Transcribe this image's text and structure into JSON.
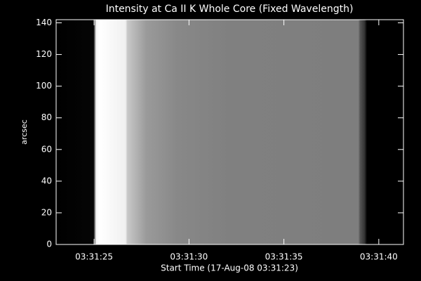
{
  "chart_data": {
    "type": "image",
    "title": "Intensity at Ca II K Whole Core (Fixed Wavelength)",
    "x_label": "Start Time (17-Aug-08 03:31:23)",
    "y_label": "arcsec",
    "xlim": [
      0,
      18.3
    ],
    "xticks": [
      {
        "value": 2,
        "label": "03:31:25"
      },
      {
        "value": 7,
        "label": "03:31:30"
      },
      {
        "value": 12,
        "label": "03:31:35"
      },
      {
        "value": 17,
        "label": "03:31:40"
      }
    ],
    "ylim": [
      0,
      142
    ],
    "yticks": [
      0,
      20,
      40,
      60,
      80,
      100,
      120,
      140
    ]
  }
}
